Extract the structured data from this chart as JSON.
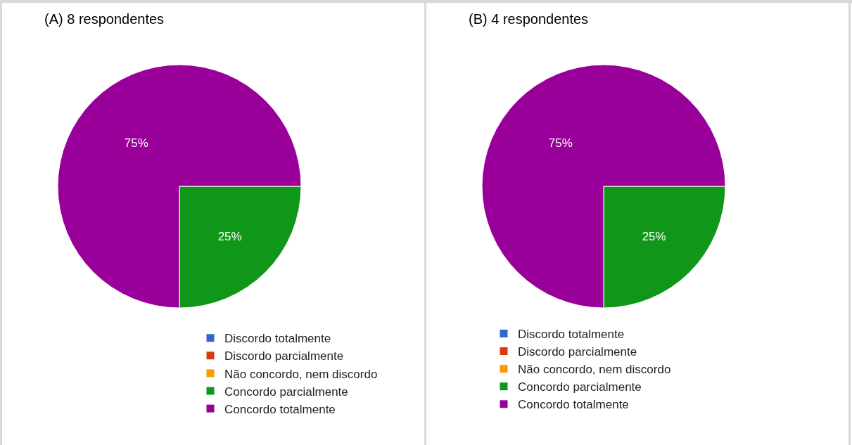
{
  "chart_data": [
    {
      "type": "pie",
      "title": "(A) 8 respondentes",
      "categories": [
        "Discordo totalmente",
        "Discordo parcialmente",
        "Não concordo, nem discordo",
        "Concordo parcialmente",
        "Concordo totalmente"
      ],
      "values": [
        0,
        0,
        0,
        25,
        75
      ],
      "colors": [
        "#3366cc",
        "#dc3912",
        "#ff9900",
        "#109618",
        "#990099"
      ],
      "value_labels": [
        null,
        null,
        null,
        "25%",
        "75%"
      ],
      "legend": "bottom"
    },
    {
      "type": "pie",
      "title": "(B) 4 respondentes",
      "categories": [
        "Discordo totalmente",
        "Discordo parcialmente",
        "Não concordo, nem discordo",
        "Concordo parcialmente",
        "Concordo totalmente"
      ],
      "values": [
        0,
        0,
        0,
        25,
        75
      ],
      "colors": [
        "#3366cc",
        "#dc3912",
        "#ff9900",
        "#109618",
        "#990099"
      ],
      "value_labels": [
        null,
        null,
        null,
        "25%",
        "75%"
      ],
      "legend": "bottom"
    }
  ]
}
